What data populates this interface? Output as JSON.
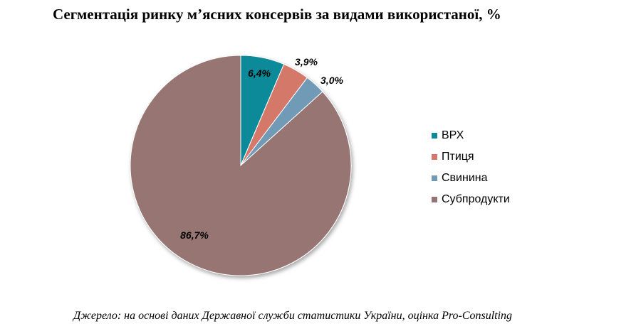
{
  "chart_data": {
    "type": "pie",
    "title": "Сегментація ринку м’ясних консервів за видами використаної, %",
    "categories": [
      "ВРХ",
      "Птиця",
      "Свинина",
      "Субпродукти"
    ],
    "values": [
      6.4,
      3.9,
      3.0,
      86.7
    ],
    "value_labels": [
      "6,4%",
      "3,9%",
      "3,0%",
      "86,7%"
    ],
    "colors": [
      "#0c8a99",
      "#d4796a",
      "#6f9ab6",
      "#967473"
    ],
    "legend_position": "right"
  },
  "source_note": "Джерело: на основі даних Державної служби статистики України, оцінка Pro-Consulting"
}
